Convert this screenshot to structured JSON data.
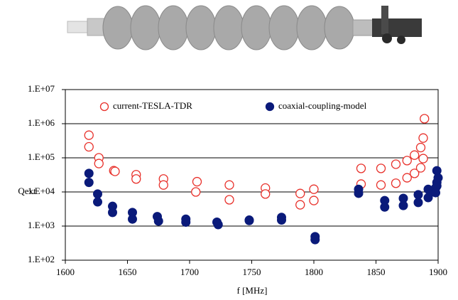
{
  "chart_data": {
    "type": "scatter",
    "x_label": "f [MHz]",
    "y_label": "Qext",
    "xlim": [
      1600,
      1900
    ],
    "xticks": [
      1600,
      1650,
      1700,
      1750,
      1800,
      1850,
      1900
    ],
    "ylim": [
      100,
      10000000
    ],
    "log_y": true,
    "grid": true,
    "legend": "top",
    "yticks": [
      {
        "value": 100,
        "label": "1.E+02"
      },
      {
        "value": 1000,
        "label": "1.E+03"
      },
      {
        "value": 10000,
        "label": "1.E+04"
      },
      {
        "value": 100000,
        "label": "1.E+05"
      },
      {
        "value": 1000000,
        "label": "1.E+06"
      },
      {
        "value": 10000000,
        "label": "1.E+07"
      }
    ],
    "series": [
      {
        "name": "current-TESLA-TDR",
        "color": "#e8302a",
        "filled": false,
        "x": [
          1619,
          1619,
          1627,
          1627,
          1639,
          1640,
          1657,
          1657,
          1679,
          1679,
          1706,
          1705,
          1732,
          1732,
          1761,
          1761,
          1789,
          1789,
          1800,
          1800,
          1838,
          1838,
          1854,
          1854,
          1866,
          1866,
          1875,
          1875,
          1881,
          1881,
          1886,
          1886,
          1888,
          1889,
          1888
        ],
        "values": [
          460000,
          210000,
          100000,
          68000,
          42000,
          40000,
          32000,
          24000,
          24000,
          16000,
          20000,
          10000,
          16000,
          5900,
          13000,
          8700,
          9000,
          4200,
          12000,
          5600,
          49000,
          17000,
          49000,
          16000,
          65000,
          18000,
          83000,
          26000,
          120000,
          35000,
          200000,
          51000,
          380000,
          1400000,
          95000
        ]
      },
      {
        "name": "coaxial-coupling-model",
        "color": "#0a1a7a",
        "filled": true,
        "x": [
          1619,
          1619,
          1626,
          1626,
          1638,
          1638,
          1654,
          1654,
          1674,
          1675,
          1697,
          1697,
          1722,
          1723,
          1748,
          1748,
          1774,
          1774,
          1801,
          1801,
          1836,
          1836,
          1857,
          1857,
          1872,
          1872,
          1884,
          1884,
          1892,
          1892,
          1895,
          1898,
          1898,
          1899,
          1899,
          1900,
          1899
        ],
        "values": [
          35000,
          19000,
          8700,
          5100,
          3800,
          2500,
          2500,
          1600,
          1900,
          1400,
          1600,
          1300,
          1300,
          1100,
          1500,
          1450,
          1800,
          1500,
          490,
          400,
          12000,
          9100,
          5600,
          3600,
          6500,
          4000,
          8300,
          4900,
          12000,
          6800,
          10000,
          13000,
          9500,
          15000,
          19000,
          26000,
          42000
        ]
      }
    ]
  }
}
